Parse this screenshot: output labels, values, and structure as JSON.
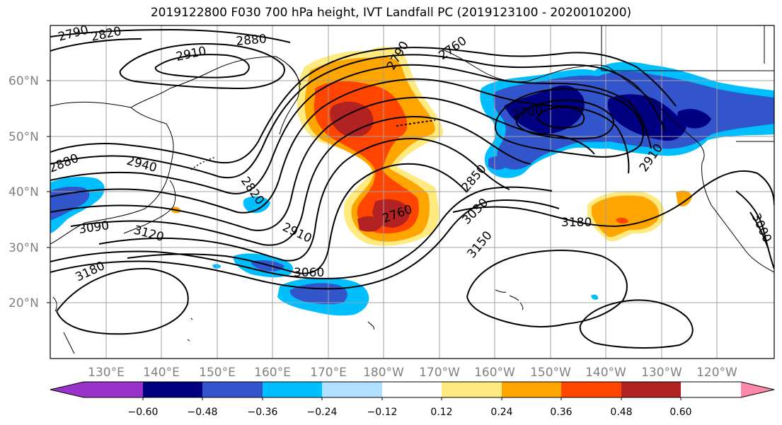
{
  "title": "2019122800 F030 700 hPa height, IVT Landfall PC (2019123100 - 2020010200)",
  "map": {
    "lat_labels": [
      "60°N",
      "50°N",
      "40°N",
      "30°N",
      "20°N"
    ],
    "lon_labels": [
      "130°E",
      "140°E",
      "150°E",
      "160°E",
      "170°E",
      "180°W",
      "170°W",
      "160°W",
      "150°W",
      "140°W",
      "130°W",
      "120°W"
    ],
    "gridline_color": "#a0a0a0",
    "coastline_color": "#000000"
  },
  "contours": {
    "field": "700 hPa height",
    "color": "#000000",
    "labels": [
      "2790",
      "2820",
      "2880",
      "2910",
      "2880",
      "2940",
      "2820",
      "2910",
      "3090",
      "3120",
      "3180",
      "3060",
      "2760",
      "2850",
      "3030",
      "3150",
      "3180",
      "2700",
      "2790",
      "2760",
      "2910",
      "3000"
    ]
  },
  "shading": {
    "field": "IVT Landfall PC",
    "colors": {
      "lt_-0.60": "#9933cc",
      "-0.60_-0.48": "#000080",
      "-0.48_-0.36": "#3355cc",
      "-0.36_-0.24": "#00bfff",
      "-0.24_-0.12": "#b0e0ff",
      "neutral": "#ffffff",
      "0.12_0.24": "#ffea80",
      "0.24_0.36": "#ffa500",
      "0.36_0.48": "#ff4500",
      "0.48_0.60": "#b22222",
      "gt_0.60": "#ff88aa"
    }
  },
  "colorbar": {
    "ticks": [
      "−0.60",
      "−0.48",
      "−0.36",
      "−0.24",
      "−0.12",
      "0.12",
      "0.24",
      "0.36",
      "0.48",
      "0.60"
    ],
    "colors": [
      "#9933cc",
      "#000080",
      "#3355cc",
      "#00bfff",
      "#b0e0ff",
      "#ffffff",
      "#ffea80",
      "#ffa500",
      "#ff4500",
      "#b22222",
      "#ff88aa"
    ]
  }
}
